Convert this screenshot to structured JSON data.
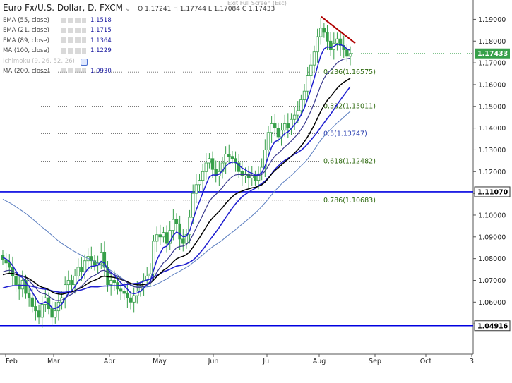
{
  "header": {
    "title": "Euro Fx/U.S. Dollar, D, FXCM",
    "ohlc": "O 1.17241  H 1.17744  L 1.17084  C 1.17433",
    "exit_full_screen": "Exit Full Screen (Esc)"
  },
  "legend": [
    {
      "name": "EMA (55, close)",
      "value": "1.1518"
    },
    {
      "name": "EMA (21, close)",
      "value": "1.1715"
    },
    {
      "name": "EMA (89, close)",
      "value": "1.1364"
    },
    {
      "name": "MA (100, close)",
      "value": "1.1229"
    },
    {
      "name": "Ichimoku (9, 26, 52, 26)",
      "value": ""
    },
    {
      "name": "MA (200, close)",
      "value": "1.0930"
    }
  ],
  "colors": {
    "candle": "#37a04a",
    "ema21": "#1f1fd0",
    "ema55": "#3a3a8e",
    "ema89": "#000000",
    "ma100": "#1f1fd0",
    "ma200": "#5b7ec0",
    "support": "#0000e0",
    "trendline": "#b00000",
    "fib_text": "#2f6a10"
  },
  "chart_data": {
    "type": "candlestick",
    "symbol": "Euro Fx/U.S. Dollar, D, FXCM",
    "ylim": [
      1.04,
      1.195
    ],
    "y_ticks": [
      "1.19000",
      "1.18000",
      "1.17000",
      "1.16000",
      "1.15000",
      "1.14000",
      "1.13000",
      "1.12000",
      "1.11000",
      "1.10000",
      "1.09000",
      "1.08000",
      "1.07000",
      "1.06000",
      "1.05000"
    ],
    "x_ticks": [
      "Feb",
      "Mar",
      "Apr",
      "May",
      "Jun",
      "Jul",
      "Aug",
      "Sep",
      "Oct",
      "3"
    ],
    "last_price": {
      "value": 1.17433,
      "label": "1.17433"
    },
    "horizontal_levels": [
      {
        "value": 1.1107,
        "label": "1.11070"
      },
      {
        "value": 1.04916,
        "label": "1.04916"
      }
    ],
    "fibonacci": [
      {
        "level": 0.236,
        "price": 1.16575,
        "label": "0.236(1.16575)"
      },
      {
        "level": 0.382,
        "price": 1.15011,
        "label": "0.382(1.15011)"
      },
      {
        "level": 0.5,
        "price": 1.13747,
        "label": "0.5(1.13747)"
      },
      {
        "level": 0.618,
        "price": 1.12482,
        "label": "0.618(1.12482)"
      },
      {
        "level": 0.786,
        "price": 1.10683,
        "label": "0.786(1.10683)"
      }
    ],
    "trendline": {
      "from": [
        "2017-08-02",
        1.191
      ],
      "to": [
        "2017-08-18",
        1.179
      ]
    },
    "candles_close": [
      1.0795,
      1.078,
      1.076,
      1.072,
      1.068,
      1.066,
      1.07,
      1.064,
      1.062,
      1.058,
      1.056,
      1.053,
      1.059,
      1.062,
      1.057,
      1.053,
      1.056,
      1.06,
      1.062,
      1.068,
      1.07,
      1.068,
      1.072,
      1.076,
      1.074,
      1.079,
      1.081,
      1.079,
      1.077,
      1.078,
      1.083,
      1.076,
      1.068,
      1.07,
      1.069,
      1.066,
      1.065,
      1.064,
      1.062,
      1.06,
      1.063,
      1.065,
      1.067,
      1.07,
      1.072,
      1.073,
      1.088,
      1.091,
      1.09,
      1.092,
      1.087,
      1.093,
      1.098,
      1.096,
      1.089,
      1.087,
      1.091,
      1.099,
      1.11,
      1.114,
      1.116,
      1.12,
      1.124,
      1.126,
      1.121,
      1.118,
      1.12,
      1.124,
      1.128,
      1.127,
      1.126,
      1.124,
      1.12,
      1.118,
      1.119,
      1.117,
      1.118,
      1.116,
      1.119,
      1.122,
      1.13,
      1.138,
      1.142,
      1.14,
      1.136,
      1.139,
      1.142,
      1.14,
      1.144,
      1.146,
      1.148,
      1.153,
      1.157,
      1.164,
      1.169,
      1.175,
      1.182,
      1.186,
      1.184,
      1.18,
      1.176,
      1.179,
      1.181,
      1.178,
      1.176,
      1.173,
      1.1743
    ],
    "series": [
      {
        "name": "EMA (21, close)",
        "value": 1.1715
      },
      {
        "name": "EMA (55, close)",
        "value": 1.1518
      },
      {
        "name": "EMA (89, close)",
        "value": 1.1364
      },
      {
        "name": "MA (100, close)",
        "value": 1.1229
      },
      {
        "name": "MA (200, close)",
        "value": 1.093
      }
    ]
  }
}
